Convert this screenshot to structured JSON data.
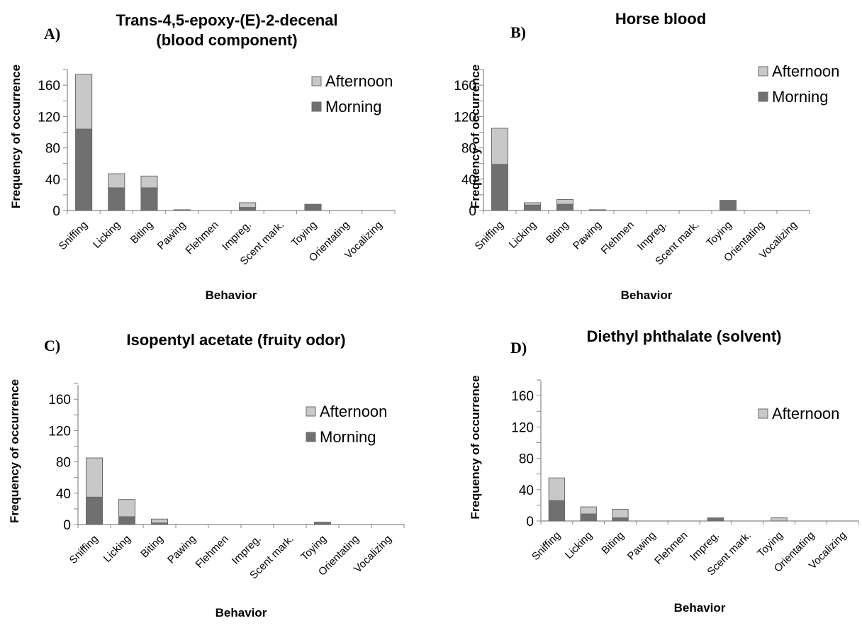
{
  "chart_data": [
    {
      "type": "bar",
      "panel": "A)",
      "title_lines": [
        "Trans-4,5-epoxy-(E)-2-decenal",
        "(blood component)"
      ],
      "xlabel": "Behavior",
      "ylabel": "Frequency of occurrence",
      "ylim": [
        0,
        180
      ],
      "yticks": [
        0,
        40,
        80,
        120,
        160
      ],
      "categories": [
        "Sniffing",
        "Licking",
        "Biting",
        "Pawing",
        "Flehmen",
        "Impreg.",
        "Scent mark.",
        "Toying",
        "Orientating",
        "Vocalizing"
      ],
      "series": [
        {
          "name": "Morning",
          "color": "#707070",
          "values": [
            104,
            29,
            29,
            0,
            0,
            4,
            0,
            8,
            0,
            0
          ]
        },
        {
          "name": "Afternoon",
          "color": "#c8c8c8",
          "values": [
            70,
            18,
            15,
            1,
            0,
            6,
            0,
            0,
            0,
            0
          ]
        }
      ],
      "legend": [
        "Afternoon",
        "Morning"
      ],
      "stacked": true,
      "grid": false
    },
    {
      "type": "bar",
      "panel": "B)",
      "title_lines": [
        "Horse blood"
      ],
      "xlabel": "Behavior",
      "ylabel": "Frequency of occurrence",
      "ylim": [
        0,
        180
      ],
      "yticks": [
        0,
        40,
        80,
        120,
        160
      ],
      "categories": [
        "Sniffing",
        "Licking",
        "Biting",
        "Pawing",
        "Flehmen",
        "Impreg.",
        "Scent mark.",
        "Toying",
        "Orientating",
        "Vocalizing"
      ],
      "series": [
        {
          "name": "Morning",
          "color": "#707070",
          "values": [
            59,
            7,
            8,
            0,
            0,
            0,
            0,
            13,
            0,
            0
          ]
        },
        {
          "name": "Afternoon",
          "color": "#c8c8c8",
          "values": [
            46,
            3,
            6,
            1,
            0,
            0,
            0,
            0,
            0,
            0
          ]
        }
      ],
      "legend": [
        "Afternoon",
        "Morning"
      ],
      "stacked": true,
      "grid": false
    },
    {
      "type": "bar",
      "panel": "C)",
      "title_lines": [
        "Isopentyl acetate (fruity odor)"
      ],
      "xlabel": "Behavior",
      "ylabel": "Frequency of occurrence",
      "ylim": [
        0,
        180
      ],
      "yticks": [
        0,
        40,
        80,
        120,
        160
      ],
      "categories": [
        "Sniffing",
        "Licking",
        "Biting",
        "Pawing",
        "Flehmen",
        "Impreg.",
        "Scent mark.",
        "Toying",
        "Orientating",
        "Vocalizing"
      ],
      "series": [
        {
          "name": "Morning",
          "color": "#707070",
          "values": [
            35,
            10,
            2,
            0,
            0,
            0,
            0,
            2,
            0,
            0
          ]
        },
        {
          "name": "Afternoon",
          "color": "#c8c8c8",
          "values": [
            50,
            22,
            5,
            0,
            0,
            0,
            0,
            1,
            0,
            0
          ]
        }
      ],
      "legend": [
        "Afternoon",
        "Morning"
      ],
      "stacked": true,
      "grid": false
    },
    {
      "type": "bar",
      "panel": "D)",
      "title_lines": [
        "Diethyl phthalate (solvent)"
      ],
      "xlabel": "Behavior",
      "ylabel": "Frequency of occurrence",
      "ylim": [
        0,
        180
      ],
      "yticks": [
        0,
        40,
        80,
        120,
        160
      ],
      "categories": [
        "Sniffing",
        "Licking",
        "Biting",
        "Pawing",
        "Flehmen",
        "Impreg.",
        "Scent mark.",
        "Toying",
        "Orientating",
        "Vocalizing"
      ],
      "series": [
        {
          "name": "Morning",
          "color": "#707070",
          "values": [
            26,
            9,
            4,
            0,
            0,
            3,
            0,
            0,
            0,
            0
          ]
        },
        {
          "name": "Afternoon",
          "color": "#c8c8c8",
          "values": [
            29,
            9,
            11,
            0,
            0,
            1,
            0,
            4,
            0,
            0
          ]
        }
      ],
      "legend": [
        "Afternoon"
      ],
      "stacked": true,
      "grid": false
    }
  ]
}
